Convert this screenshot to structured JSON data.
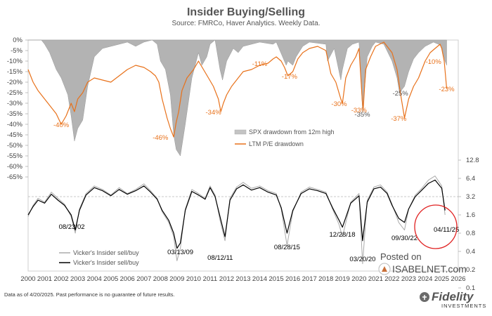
{
  "chart_data": [
    {
      "type": "area",
      "title": "Insider Buying/Selling",
      "subtitle": "Source: FMRCo, Haver Analytics. Weekly Data.",
      "ylim": [
        -70,
        0
      ],
      "y_ticks": [
        "0%",
        "-5%",
        "-10%",
        "-15%",
        "-20%",
        "-25%",
        "-30%",
        "-35%",
        "-40%",
        "-45%",
        "-50%",
        "-55%",
        "-60%",
        "-65%"
      ],
      "series": [
        {
          "name": "SPX drawdown from 12m high",
          "color": "#a6a6a6",
          "x": [
            2000.0,
            2000.5,
            2000.8,
            2001.0,
            2001.3,
            2001.7,
            2002.0,
            2002.4,
            2002.6,
            2002.8,
            2003.0,
            2003.3,
            2003.6,
            2004.0,
            2004.5,
            2005.0,
            2005.5,
            2006.0,
            2006.5,
            2007.0,
            2007.5,
            2007.8,
            2008.0,
            2008.3,
            2008.6,
            2008.8,
            2008.95,
            2009.2,
            2009.5,
            2009.9,
            2010.3,
            2010.5,
            2010.8,
            2011.0,
            2011.3,
            2011.6,
            2011.75,
            2012.0,
            2012.4,
            2012.7,
            2013.0,
            2014.0,
            2014.8,
            2015.0,
            2015.6,
            2015.7,
            2016.0,
            2016.2,
            2016.6,
            2017.0,
            2018.0,
            2018.1,
            2018.5,
            2018.9,
            2019.0,
            2019.3,
            2019.6,
            2020.0,
            2020.22,
            2020.5,
            2020.8,
            2021.0,
            2021.5,
            2022.0,
            2022.3,
            2022.45,
            2022.75,
            2023.0,
            2023.3,
            2023.6,
            2024.0,
            2024.5,
            2024.8,
            2025.0,
            2025.2,
            2025.3
          ],
          "values": [
            0,
            0,
            0,
            -2,
            -6,
            -14,
            -18,
            -26,
            -36,
            -48,
            -42,
            -38,
            -22,
            -8,
            -4,
            -3,
            -2,
            -1,
            -3,
            -1,
            0,
            -2,
            -10,
            -14,
            -26,
            -45,
            -52,
            -55,
            -40,
            -18,
            -6,
            -12,
            -8,
            -2,
            0,
            -14,
            -19,
            -10,
            -4,
            -6,
            -3,
            -1,
            -2,
            -1,
            -12,
            -10,
            -12,
            -8,
            -3,
            -1,
            -2,
            -10,
            -4,
            -19,
            -14,
            -4,
            -2,
            -1,
            -34,
            -8,
            -3,
            -1,
            -2,
            -10,
            -18,
            -25,
            -22,
            -15,
            -9,
            -6,
            -3,
            -1,
            -2,
            -3,
            -10,
            -12
          ]
        },
        {
          "name": "LTM P/E drawdown",
          "color": "#e8711a",
          "x": [
            2000.0,
            2000.3,
            2000.6,
            2001.0,
            2001.3,
            2001.7,
            2002.0,
            2002.3,
            2002.6,
            2002.8,
            2003.0,
            2003.3,
            2003.6,
            2004.0,
            2004.5,
            2005.0,
            2005.5,
            2006.0,
            2006.5,
            2007.0,
            2007.4,
            2007.7,
            2007.9,
            2008.1,
            2008.4,
            2008.6,
            2008.8,
            2008.95,
            2009.1,
            2009.3,
            2009.6,
            2010.0,
            2010.3,
            2010.6,
            2010.9,
            2011.2,
            2011.5,
            2011.65,
            2011.8,
            2012.0,
            2012.3,
            2012.7,
            2013.0,
            2013.5,
            2014.0,
            2014.5,
            2014.8,
            2015.0,
            2015.3,
            2015.5,
            2015.7,
            2016.0,
            2016.3,
            2016.6,
            2017.0,
            2017.5,
            2018.0,
            2018.3,
            2018.6,
            2018.9,
            2019.0,
            2019.2,
            2019.5,
            2019.8,
            2020.0,
            2020.2,
            2020.25,
            2020.4,
            2020.7,
            2021.0,
            2021.5,
            2022.0,
            2022.3,
            2022.5,
            2022.75,
            2023.0,
            2023.3,
            2023.6,
            2024.0,
            2024.3,
            2024.6,
            2024.9,
            2025.0,
            2025.15,
            2025.3
          ],
          "values": [
            -14,
            -20,
            -24,
            -28,
            -31,
            -35,
            -40,
            -36,
            -30,
            -34,
            -28,
            -25,
            -20,
            -18,
            -19,
            -20,
            -17,
            -14,
            -12,
            -13,
            -15,
            -17,
            -20,
            -28,
            -37,
            -42,
            -46,
            -39,
            -34,
            -24,
            -18,
            -14,
            -10,
            -14,
            -18,
            -22,
            -28,
            -34,
            -30,
            -26,
            -22,
            -18,
            -15,
            -14,
            -12,
            -11,
            -9,
            -8,
            -10,
            -13,
            -17,
            -15,
            -9,
            -6,
            -4,
            -3,
            -5,
            -16,
            -20,
            -28,
            -30,
            -18,
            -12,
            -8,
            -4,
            -29,
            -33,
            -14,
            -8,
            -3,
            -1,
            -6,
            -14,
            -25,
            -37,
            -28,
            -22,
            -18,
            -10,
            -6,
            -4,
            -2,
            -4,
            -10,
            -23
          ]
        }
      ],
      "annotations": [
        {
          "label": "-40%",
          "x": 2002.0,
          "y": -40,
          "color": "#e8711a"
        },
        {
          "label": "-46%",
          "x": 2008.0,
          "y": -46,
          "color": "#e8711a"
        },
        {
          "label": "-34%",
          "x": 2011.2,
          "y": -34,
          "color": "#e8711a"
        },
        {
          "label": "-11%",
          "x": 2014.0,
          "y": -11,
          "color": "#e8711a"
        },
        {
          "label": "-17%",
          "x": 2015.8,
          "y": -17,
          "color": "#e8711a"
        },
        {
          "label": "-30%",
          "x": 2018.8,
          "y": -30,
          "color": "#e8711a"
        },
        {
          "label": "-35%",
          "x": 2020.2,
          "y": -35,
          "color": "#555555"
        },
        {
          "label": "-33%",
          "x": 2020.0,
          "y": -33,
          "color": "#e8711a"
        },
        {
          "label": "-25%",
          "x": 2022.5,
          "y": -25,
          "color": "#555555"
        },
        {
          "label": "-37%",
          "x": 2022.4,
          "y": -37,
          "color": "#e8711a"
        },
        {
          "label": "-10%",
          "x": 2024.5,
          "y": -10,
          "color": "#e8711a"
        },
        {
          "label": "-23%",
          "x": 2025.3,
          "y": -23,
          "color": "#e8711a"
        }
      ],
      "legend": {
        "position": "middle-right",
        "entries": [
          "SPX drawdown from 12m high",
          "LTM P/E drawdown"
        ]
      }
    },
    {
      "type": "line",
      "y_scale": "log",
      "ylim": [
        0.1,
        12.8
      ],
      "y_ticks": [
        "12.8",
        "6.4",
        "3.2",
        "1.6",
        "0.8",
        "0.4",
        "0.2",
        "0.1"
      ],
      "x_ticks": [
        "2000",
        "2001",
        "2002",
        "2003",
        "2004",
        "2005",
        "2006",
        "2007",
        "2008",
        "2009",
        "2010",
        "2011",
        "2012",
        "2013",
        "2014",
        "2015",
        "2016",
        "2017",
        "2018",
        "2019",
        "2020",
        "2021",
        "2022",
        "2023",
        "2024",
        "2025",
        "2026"
      ],
      "reference_line": 3.2,
      "series": [
        {
          "name": "Vicker's Insider sell/buy",
          "color": "#aaaaaa",
          "x": [
            2000.0,
            2000.3,
            2000.6,
            2001.0,
            2001.4,
            2001.8,
            2002.2,
            2002.6,
            2002.85,
            2003.1,
            2003.5,
            2004.0,
            2004.5,
            2005.0,
            2005.5,
            2006.0,
            2006.5,
            2007.0,
            2007.4,
            2007.8,
            2008.1,
            2008.5,
            2008.8,
            2009.0,
            2009.2,
            2009.5,
            2009.9,
            2010.3,
            2010.7,
            2011.0,
            2011.3,
            2011.6,
            2011.9,
            2012.2,
            2012.6,
            2013.0,
            2013.5,
            2014.0,
            2014.5,
            2015.0,
            2015.3,
            2015.65,
            2016.0,
            2016.5,
            2017.0,
            2017.5,
            2018.0,
            2018.4,
            2018.8,
            2019.0,
            2019.5,
            2020.0,
            2020.22,
            2020.5,
            2020.9,
            2021.3,
            2021.7,
            2022.0,
            2022.4,
            2022.75,
            2023.0,
            2023.4,
            2023.8,
            2024.2,
            2024.6,
            2025.0,
            2025.2
          ],
          "values": [
            1.5,
            2.3,
            3.0,
            2.6,
            3.8,
            3.0,
            2.4,
            1.5,
            0.8,
            2.0,
            3.6,
            4.8,
            4.2,
            3.4,
            4.5,
            3.6,
            4.2,
            5.2,
            4.0,
            3.0,
            1.8,
            1.2,
            0.7,
            0.28,
            0.45,
            2.0,
            4.2,
            3.6,
            3.0,
            4.8,
            3.4,
            1.3,
            0.6,
            3.0,
            4.6,
            5.5,
            4.4,
            4.8,
            4.0,
            3.6,
            2.0,
            0.5,
            1.8,
            3.8,
            4.6,
            4.2,
            3.8,
            2.0,
            1.1,
            0.7,
            2.6,
            3.6,
            0.25,
            2.8,
            4.6,
            5.0,
            3.8,
            2.4,
            1.2,
            0.9,
            2.0,
            3.4,
            4.4,
            6.0,
            7.0,
            4.8,
            1.6
          ]
        },
        {
          "name": "Vicker's Insider sell/buy",
          "color": "#000000",
          "x": [
            2000.0,
            2000.3,
            2000.6,
            2001.0,
            2001.4,
            2001.8,
            2002.2,
            2002.6,
            2002.85,
            2003.1,
            2003.5,
            2004.0,
            2004.5,
            2005.0,
            2005.5,
            2006.0,
            2006.5,
            2007.0,
            2007.4,
            2007.8,
            2008.1,
            2008.5,
            2008.8,
            2009.0,
            2009.2,
            2009.5,
            2009.9,
            2010.3,
            2010.7,
            2011.0,
            2011.3,
            2011.6,
            2011.9,
            2012.2,
            2012.6,
            2013.0,
            2013.5,
            2014.0,
            2014.5,
            2015.0,
            2015.3,
            2015.65,
            2016.0,
            2016.5,
            2017.0,
            2017.5,
            2018.0,
            2018.4,
            2018.8,
            2019.0,
            2019.5,
            2020.0,
            2020.22,
            2020.5,
            2020.9,
            2021.3,
            2021.7,
            2022.0,
            2022.4,
            2022.75,
            2023.0,
            2023.4,
            2023.8,
            2024.2,
            2024.6,
            2025.0,
            2025.2
          ],
          "values": [
            1.6,
            2.2,
            2.8,
            2.5,
            3.5,
            2.8,
            2.3,
            1.6,
            0.9,
            1.9,
            3.4,
            4.5,
            4.0,
            3.3,
            4.2,
            3.5,
            4.0,
            4.8,
            3.8,
            2.9,
            1.9,
            1.3,
            0.8,
            0.45,
            0.55,
            1.9,
            3.9,
            3.4,
            2.9,
            4.5,
            3.2,
            1.5,
            0.7,
            2.8,
            4.3,
            5.0,
            4.1,
            4.5,
            3.8,
            3.4,
            2.1,
            0.8,
            1.9,
            3.6,
            4.3,
            4.0,
            3.6,
            2.1,
            1.3,
            1.0,
            2.5,
            3.3,
            0.6,
            2.6,
            4.3,
            4.6,
            3.6,
            2.3,
            1.4,
            1.2,
            2.0,
            3.2,
            4.1,
            5.3,
            6.0,
            4.4,
            1.9
          ]
        }
      ],
      "annotations": [
        {
          "label": "08/23/02",
          "x": 2002.64
        },
        {
          "label": "03/13/09",
          "x": 2009.2
        },
        {
          "label": "08/12/11",
          "x": 2011.61
        },
        {
          "label": "08/28/15",
          "x": 2015.65
        },
        {
          "label": "12/28/18",
          "x": 2018.99
        },
        {
          "label": "03/20/20",
          "x": 2020.22
        },
        {
          "label": "09/30/22",
          "x": 2022.75
        },
        {
          "label": "04/11/25",
          "x": 2025.28
        }
      ],
      "legend": {
        "position": "bottom-left",
        "entries": [
          "Vicker's Insider sell/buy",
          "Vicker's Insider sell/buy"
        ]
      }
    }
  ],
  "watermark": {
    "line1": "Posted on",
    "line2": "ISABELNET.com"
  },
  "footer": {
    "disclaimer": "Data as of 4/20/2025. Past performance is no guarantee of future results."
  },
  "brand": {
    "name": "Fidelity",
    "tagline": "INVESTMENTS"
  }
}
